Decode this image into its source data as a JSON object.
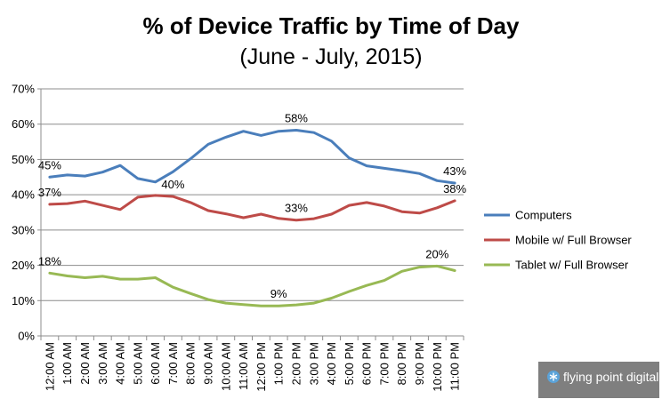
{
  "chart_data": {
    "type": "line",
    "title": "% of Device Traffic by Time of Day",
    "subtitle": "(June - July, 2015)",
    "categories": [
      "12:00 AM",
      "1:00 AM",
      "2:00 AM",
      "3:00 AM",
      "4:00 AM",
      "5:00 AM",
      "6:00 AM",
      "7:00 AM",
      "8:00 AM",
      "9:00 AM",
      "10:00 AM",
      "11:00 AM",
      "12:00 PM",
      "1:00 PM",
      "2:00 PM",
      "3:00 PM",
      "4:00 PM",
      "5:00 PM",
      "6:00 PM",
      "7:00 PM",
      "8:00 PM",
      "9:00 PM",
      "10:00 PM",
      "11:00 PM"
    ],
    "ylim": [
      0,
      70
    ],
    "yticks": [
      "0%",
      "10%",
      "20%",
      "30%",
      "40%",
      "50%",
      "60%",
      "70%"
    ],
    "grid": true,
    "legend_position": "right",
    "series": [
      {
        "name": "Computers",
        "color": "#4a7ebb",
        "values": [
          45,
          45.6,
          45.3,
          46.4,
          48.3,
          44.6,
          43.6,
          46.5,
          50.2,
          54.3,
          56.3,
          58,
          56.8,
          58,
          58.3,
          57.6,
          55.2,
          50.4,
          48.2,
          47.5,
          46.8,
          46,
          44,
          43.3
        ]
      },
      {
        "name": "Mobile w/ Full Browser",
        "color": "#be4b48",
        "values": [
          37.3,
          37.5,
          38.2,
          37,
          35.8,
          39.3,
          39.8,
          39.5,
          37.8,
          35.5,
          34.6,
          33.5,
          34.5,
          33.3,
          32.8,
          33.2,
          34.5,
          37,
          37.8,
          36.8,
          35.2,
          34.8,
          36.3,
          38.3
        ]
      },
      {
        "name": "Tablet w/ Full Browser",
        "color": "#98b954",
        "values": [
          17.8,
          17,
          16.5,
          16.9,
          16.1,
          16.1,
          16.5,
          13.8,
          12,
          10.3,
          9.3,
          8.9,
          8.5,
          8.5,
          8.8,
          9.3,
          10.7,
          12.6,
          14.3,
          15.7,
          18.3,
          19.5,
          19.8,
          18.5
        ]
      }
    ],
    "data_labels": [
      {
        "series": 0,
        "index": 0,
        "text": "45%"
      },
      {
        "series": 0,
        "index": 14,
        "text": "58%"
      },
      {
        "series": 0,
        "index": 23,
        "text": "43%"
      },
      {
        "series": 1,
        "index": 0,
        "text": "37%"
      },
      {
        "series": 1,
        "index": 7,
        "text": "40%"
      },
      {
        "series": 1,
        "index": 14,
        "text": "33%"
      },
      {
        "series": 1,
        "index": 23,
        "text": "38%"
      },
      {
        "series": 2,
        "index": 0,
        "text": "18%"
      },
      {
        "series": 2,
        "index": 13,
        "text": "9%"
      },
      {
        "series": 2,
        "index": 22,
        "text": "20%"
      }
    ]
  },
  "logo": {
    "text": "flying point digital",
    "background": "#7f7f7f",
    "icon": "asterisk-circle-icon"
  }
}
